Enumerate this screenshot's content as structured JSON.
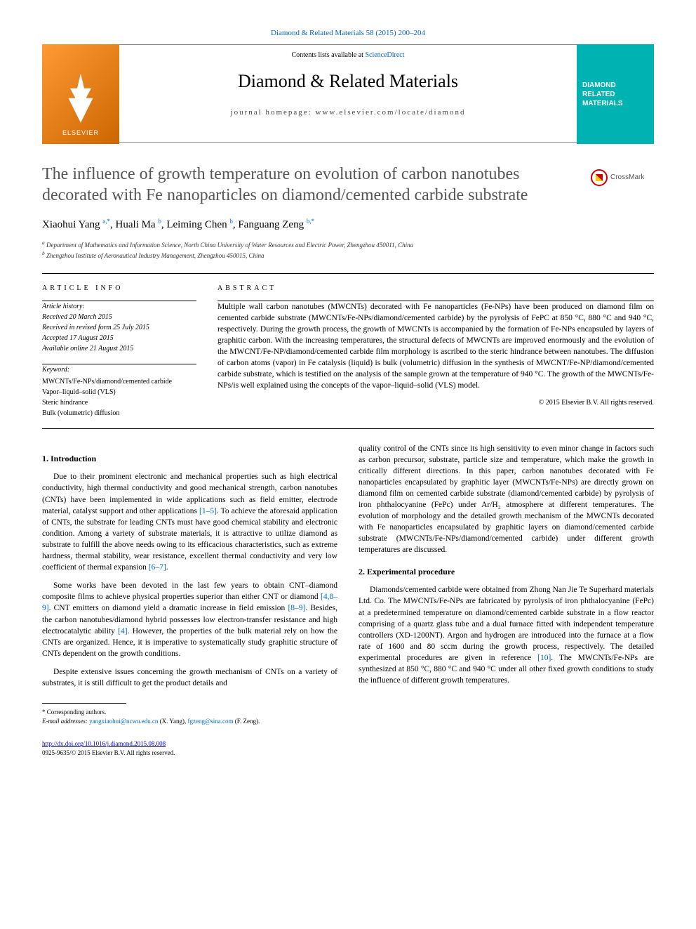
{
  "header": {
    "top_link": "Diamond & Related Materials 58 (2015) 200–204",
    "contents_line_prefix": "Contents lists available at ",
    "contents_link": "ScienceDirect",
    "journal_title": "Diamond & Related Materials",
    "homepage_label": "journal homepage: www.elsevier.com/locate/diamond",
    "publisher_logo_text": "ELSEVIER",
    "cover_text": "DIAMOND RELATED MATERIALS"
  },
  "crossmark": {
    "label": "CrossMark"
  },
  "article": {
    "title": "The influence of growth temperature on evolution of carbon nanotubes decorated with Fe nanoparticles on diamond/cemented carbide substrate",
    "authors_html": "Xiaohui Yang <sup>a,*</sup>, Huali Ma <sup>b</sup>, Leiming Chen <sup>b</sup>, Fanguang Zeng <sup>b,*</sup>",
    "affiliations": {
      "a": "Department of Mathematics and Information Science, North China University of Water Resources and Electric Power, Zhengzhou 450011, China",
      "b": "Zhengzhou Institute of Aeronautical Industry Management, Zhengzhou 450015, China"
    }
  },
  "meta": {
    "info_label": "ARTICLE INFO",
    "abstract_label": "ABSTRACT",
    "history_label": "Article history:",
    "history": {
      "received": "Received 20 March 2015",
      "revised": "Received in revised form 25 July 2015",
      "accepted": "Accepted 17 August 2015",
      "online": "Available online 21 August 2015"
    },
    "keyword_label": "Keyword:",
    "keywords": [
      "MWCNTs/Fe-NPs/diamond/cemented carbide",
      "Vapor–liquid–solid (VLS)",
      "Steric hindrance",
      "Bulk (volumetric) diffusion"
    ]
  },
  "abstract": {
    "text": "Multiple wall carbon nanotubes (MWCNTs) decorated with Fe nanoparticles (Fe-NPs) have been produced on diamond film on cemented carbide substrate (MWCNTs/Fe-NPs/diamond/cemented carbide) by the pyrolysis of FePC at 850 °C, 880 °C and 940 °C, respectively. During the growth process, the growth of MWCNTs is accompanied by the formation of Fe-NPs encapsuled by layers of graphitic carbon. With the increasing temperatures, the structural defects of MWCNTs are improved enormously and the evolution of the MWCNT/Fe-NP/diamond/cemented carbide film morphology is ascribed to the steric hindrance between nanotubes. The diffusion of carbon atoms (vapor) in Fe catalysis (liquid) is bulk (volumetric) diffusion in the synthesis of MWCNT/Fe-NP/diamond/cemented carbide substrate, which is testified on the analysis of the sample grown at the temperature of 940 °C. The growth of the MWCNTs/Fe-NPs/is well explained using the concepts of the vapor–liquid–solid (VLS) model.",
    "copyright": "© 2015 Elsevier B.V. All rights reserved."
  },
  "sections": {
    "intro_heading": "1. Introduction",
    "intro_p1": "Due to their prominent electronic and mechanical properties such as high electrical conductivity, high thermal conductivity and good mechanical strength, carbon nanotubes (CNTs) have been implemented in wide applications such as field emitter, electrode material, catalyst support and other applications ",
    "intro_p1_ref": "[1–5]",
    "intro_p1_cont": ". To achieve the aforesaid application of CNTs, the substrate for leading CNTs must have good chemical stability and electronic condition. Among a variety of substrate materials, it is attractive to utilize diamond as substrate to fulfill the above needs owing to its efficacious characteristics, such as extreme hardness, thermal stability, wear resistance, excellent thermal conductivity and very low coefficient of thermal expansion ",
    "intro_p1_ref2": "[6–7]",
    "intro_p1_end": ".",
    "intro_p2": "Some works have been devoted in the last few years to obtain CNT–diamond composite films to achieve physical properties superior than either CNT or diamond ",
    "intro_p2_ref": "[4,8–9]",
    "intro_p2_cont": ". CNT emitters on diamond yield a dramatic increase in field emission ",
    "intro_p2_ref2": "[8–9]",
    "intro_p2_cont2": ". Besides, the carbon nanotubes/diamond hybrid possesses low electron-transfer resistance and high electrocatalytic ability ",
    "intro_p2_ref3": "[4]",
    "intro_p2_cont3": ". However, the properties of the bulk material rely on how the CNTs are organized. Hence, it is imperative to systematically study graphitic structure of CNTs dependent on the growth conditions.",
    "intro_p3": "Despite extensive issues concerning the growth mechanism of CNTs on a variety of substrates, it is still difficult to get the product details and",
    "intro_p4": "quality control of the CNTs since its high sensitivity to even minor change in factors such as carbon precursor, substrate, particle size and temperature, which make the growth in critically different directions. In this paper, carbon nanotubes decorated with Fe nanoparticles encapsulated by graphitic layer (MWCNTs/Fe-NPs) are directly grown on diamond film on cemented carbide substrate (diamond/cemented carbide) by pyrolysis of iron phthalocyanine (FePc) under Ar/H₂ atmosphere at different temperatures. The evolution of morphology and the detailed growth mechanism of the MWCNTs decorated with Fe nanoparticles encapsulated by graphitic layers on diamond/cemented carbide substrate (MWCNTs/Fe-NPs/diamond/cemented carbide) under different growth temperatures are discussed.",
    "exp_heading": "2. Experimental procedure",
    "exp_p1": "Diamonds/cemented carbide were obtained from Zhong Nan Jie Te Superhard materials Ltd. Co. The MWCNTs/Fe-NPs are fabricated by pyrolysis of iron phthalocyanine (FePc) at a predetermined temperature on diamond/cemented carbide substrate in a flow reactor comprising of a quartz glass tube and a dual furnace fitted with independent temperature controllers (XD-1200NT). Argon and hydrogen are introduced into the furnace at a flow rate of 1600 and 80 sccm during the growth process, respectively. The detailed experimental procedures are given in reference ",
    "exp_p1_ref": "[10]",
    "exp_p1_cont": ". The MWCNTs/Fe-NPs are synthesized at 850 °C, 880 °C and 940 °C under all other fixed growth conditions to study the influence of different growth temperatures."
  },
  "footer": {
    "corresponding": "* Corresponding authors.",
    "email_label": "E-mail addresses: ",
    "email1": "yangxiaohui@ncwu.edu.cn",
    "email1_paren": " (X. Yang), ",
    "email2": "fgzeng@sina.com",
    "email2_paren": " (F. Zeng).",
    "doi": "http://dx.doi.org/10.1016/j.diamond.2015.08.008",
    "issn_line": "0925-9635/© 2015 Elsevier B.V. All rights reserved."
  },
  "colors": {
    "link": "#0066cc",
    "elsevier_orange": "#ff9933",
    "cover_teal": "#00b3b3",
    "text": "#000000",
    "title_gray": "#555555"
  }
}
